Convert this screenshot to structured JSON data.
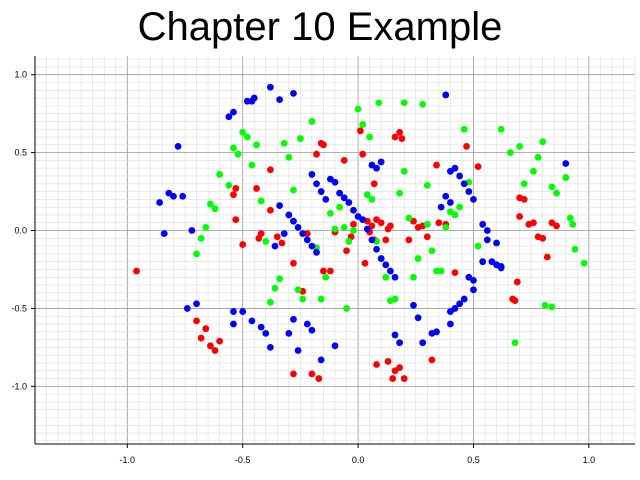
{
  "chart_data": {
    "type": "scatter",
    "title": "Chapter 10 Example",
    "xlabel": "",
    "ylabel": "",
    "xlim": [
      -1.4,
      1.2
    ],
    "ylim": [
      -1.37,
      1.12
    ],
    "grid": true,
    "x_ticks": [
      {
        "value": -1.0,
        "label": "-1.0"
      },
      {
        "value": -0.5,
        "label": "-0.5"
      },
      {
        "value": 0.0,
        "label": "0.0"
      },
      {
        "value": 0.5,
        "label": "0.5"
      },
      {
        "value": 1.0,
        "label": "1.0"
      }
    ],
    "y_ticks": [
      {
        "value": 1.0,
        "label": "1.0"
      },
      {
        "value": 0.5,
        "label": "0.5"
      },
      {
        "value": 0.0,
        "label": "0.0"
      },
      {
        "value": -0.5,
        "label": "-0.5"
      },
      {
        "value": -1.0,
        "label": "-1.0"
      }
    ],
    "series": [
      {
        "color": "#ff0000",
        "points": [
          [
            -0.96,
            -0.26
          ],
          [
            -0.53,
            0.27
          ],
          [
            -0.54,
            0.23
          ],
          [
            -0.53,
            0.07
          ],
          [
            -0.5,
            -0.09
          ],
          [
            -0.44,
            0.27
          ],
          [
            -0.43,
            -0.05
          ],
          [
            -0.42,
            -0.02
          ],
          [
            -0.38,
            0.39
          ],
          [
            -0.38,
            0.13
          ],
          [
            -0.35,
            -0.04
          ],
          [
            -0.33,
            -0.08
          ],
          [
            -0.28,
            -0.21
          ],
          [
            -0.24,
            -0.39
          ],
          [
            -0.22,
            -0.02
          ],
          [
            -0.18,
            0.49
          ],
          [
            -0.16,
            0.56
          ],
          [
            -0.15,
            0.55
          ],
          [
            -0.15,
            -0.26
          ],
          [
            -0.12,
            -0.26
          ],
          [
            -0.1,
            -0.01
          ],
          [
            -0.06,
            0.45
          ],
          [
            -0.05,
            -0.13
          ],
          [
            -0.03,
            -0.04
          ],
          [
            -0.02,
            0.04
          ],
          [
            0.01,
            0.64
          ],
          [
            0.02,
            0.49
          ],
          [
            0.03,
            -0.21
          ],
          [
            0.04,
            0.06
          ],
          [
            0.05,
            -0.01
          ],
          [
            0.06,
            0.03
          ],
          [
            0.07,
            -0.06
          ],
          [
            0.07,
            0.3
          ],
          [
            0.08,
            0.07
          ],
          [
            0.1,
            0.05
          ],
          [
            0.12,
            -0.06
          ],
          [
            0.13,
            0.01
          ],
          [
            0.14,
            0.03
          ],
          [
            0.16,
            0.6
          ],
          [
            0.18,
            0.63
          ],
          [
            0.19,
            0.59
          ],
          [
            0.22,
            -0.06
          ],
          [
            0.24,
            0.06
          ],
          [
            0.26,
            0.02
          ],
          [
            0.28,
            0.03
          ],
          [
            0.3,
            -0.04
          ],
          [
            0.34,
            0.42
          ],
          [
            0.35,
            0.05
          ],
          [
            0.38,
            0.04
          ],
          [
            0.42,
            -0.27
          ],
          [
            0.47,
            0.54
          ],
          [
            0.52,
            0.41
          ],
          [
            0.67,
            -0.44
          ],
          [
            0.68,
            -0.45
          ],
          [
            0.69,
            -0.33
          ],
          [
            0.7,
            0.21
          ],
          [
            0.7,
            0.09
          ],
          [
            0.72,
            0.2
          ],
          [
            0.74,
            0.04
          ],
          [
            0.76,
            0.05
          ],
          [
            0.78,
            -0.04
          ],
          [
            0.8,
            -0.05
          ],
          [
            0.82,
            -0.17
          ],
          [
            0.84,
            0.05
          ],
          [
            0.86,
            0.03
          ],
          [
            -0.7,
            -0.58
          ],
          [
            -0.68,
            -0.69
          ],
          [
            -0.66,
            -0.63
          ],
          [
            -0.64,
            -0.74
          ],
          [
            -0.62,
            -0.77
          ],
          [
            -0.6,
            -0.71
          ],
          [
            0.13,
            -0.84
          ],
          [
            0.16,
            -0.9
          ],
          [
            0.18,
            -0.88
          ],
          [
            0.2,
            -0.95
          ],
          [
            -0.28,
            -0.92
          ],
          [
            -0.2,
            -0.92
          ],
          [
            -0.17,
            -0.95
          ],
          [
            0.08,
            -0.86
          ],
          [
            0.15,
            -0.95
          ],
          [
            0.32,
            -0.83
          ]
        ]
      },
      {
        "color": "#00ff00",
        "points": [
          [
            -0.7,
            -0.15
          ],
          [
            -0.68,
            -0.05
          ],
          [
            -0.66,
            0.02
          ],
          [
            -0.64,
            0.17
          ],
          [
            -0.62,
            0.14
          ],
          [
            -0.6,
            0.36
          ],
          [
            -0.56,
            0.29
          ],
          [
            -0.54,
            0.53
          ],
          [
            -0.52,
            0.49
          ],
          [
            -0.5,
            0.63
          ],
          [
            -0.48,
            0.6
          ],
          [
            -0.46,
            0.42
          ],
          [
            -0.44,
            0.55
          ],
          [
            -0.42,
            0.19
          ],
          [
            -0.4,
            -0.07
          ],
          [
            -0.38,
            -0.46
          ],
          [
            -0.36,
            -0.37
          ],
          [
            -0.34,
            -0.31
          ],
          [
            -0.32,
            0.56
          ],
          [
            -0.3,
            0.47
          ],
          [
            -0.28,
            0.26
          ],
          [
            -0.26,
            -0.38
          ],
          [
            -0.24,
            -0.44
          ],
          [
            -0.2,
            0.7
          ],
          [
            -0.18,
            -0.11
          ],
          [
            -0.16,
            -0.44
          ],
          [
            -0.14,
            -0.3
          ],
          [
            -0.12,
            0.11
          ],
          [
            -0.1,
            0.01
          ],
          [
            -0.08,
            0.15
          ],
          [
            -0.06,
            0.02
          ],
          [
            -0.04,
            -0.07
          ],
          [
            -0.02,
            0.0
          ],
          [
            0.0,
            0.78
          ],
          [
            0.02,
            0.68
          ],
          [
            0.04,
            0.23
          ],
          [
            0.06,
            0.2
          ],
          [
            0.08,
            -0.07
          ],
          [
            0.1,
            -0.18
          ],
          [
            0.12,
            -0.3
          ],
          [
            0.14,
            -0.45
          ],
          [
            0.16,
            -0.44
          ],
          [
            0.18,
            0.24
          ],
          [
            0.2,
            0.82
          ],
          [
            0.22,
            0.08
          ],
          [
            0.24,
            -0.3
          ],
          [
            0.26,
            -0.18
          ],
          [
            0.28,
            0.81
          ],
          [
            0.3,
            0.04
          ],
          [
            0.32,
            -0.13
          ],
          [
            0.34,
            -0.26
          ],
          [
            0.36,
            -0.26
          ],
          [
            0.38,
            0.02
          ],
          [
            0.4,
            0.12
          ],
          [
            0.42,
            0.1
          ],
          [
            0.44,
            0.15
          ],
          [
            0.46,
            0.65
          ],
          [
            0.48,
            0.31
          ],
          [
            0.52,
            -0.1
          ],
          [
            0.62,
            0.65
          ],
          [
            0.66,
            0.5
          ],
          [
            0.7,
            0.54
          ],
          [
            0.72,
            0.3
          ],
          [
            0.76,
            0.38
          ],
          [
            0.78,
            0.47
          ],
          [
            0.8,
            0.57
          ],
          [
            0.84,
            0.28
          ],
          [
            0.86,
            0.24
          ],
          [
            0.9,
            0.34
          ],
          [
            0.92,
            0.08
          ],
          [
            0.93,
            0.04
          ],
          [
            0.94,
            -0.12
          ],
          [
            0.98,
            -0.21
          ],
          [
            0.84,
            -0.49
          ],
          [
            0.81,
            -0.48
          ],
          [
            0.68,
            -0.72
          ],
          [
            -0.05,
            -0.5
          ],
          [
            0.2,
            0.38
          ],
          [
            0.3,
            0.29
          ],
          [
            0.05,
            0.6
          ],
          [
            -0.25,
            0.59
          ],
          [
            0.09,
            0.82
          ]
        ]
      },
      {
        "color": "#0000ff",
        "points": [
          [
            -0.78,
            0.54
          ],
          [
            -0.82,
            0.24
          ],
          [
            -0.8,
            0.22
          ],
          [
            -0.76,
            0.22
          ],
          [
            -0.86,
            0.18
          ],
          [
            -0.84,
            -0.02
          ],
          [
            -0.72,
            0.0
          ],
          [
            -0.74,
            -0.5
          ],
          [
            -0.7,
            -0.47
          ],
          [
            -0.54,
            -0.52
          ],
          [
            -0.54,
            -0.6
          ],
          [
            -0.5,
            -0.52
          ],
          [
            -0.46,
            -0.58
          ],
          [
            -0.42,
            -0.62
          ],
          [
            -0.4,
            -0.66
          ],
          [
            -0.38,
            -0.75
          ],
          [
            -0.3,
            -0.66
          ],
          [
            -0.28,
            -0.57
          ],
          [
            -0.26,
            -0.77
          ],
          [
            -0.22,
            -0.6
          ],
          [
            -0.2,
            -0.64
          ],
          [
            -0.16,
            -0.83
          ],
          [
            -0.1,
            -0.74
          ],
          [
            -0.56,
            0.73
          ],
          [
            -0.54,
            0.76
          ],
          [
            -0.48,
            0.83
          ],
          [
            -0.46,
            0.83
          ],
          [
            -0.45,
            0.85
          ],
          [
            -0.38,
            0.92
          ],
          [
            -0.34,
            0.84
          ],
          [
            -0.28,
            0.88
          ],
          [
            -0.2,
            0.36
          ],
          [
            -0.18,
            0.3
          ],
          [
            -0.16,
            0.25
          ],
          [
            -0.14,
            0.2
          ],
          [
            -0.12,
            0.33
          ],
          [
            -0.1,
            0.31
          ],
          [
            -0.08,
            0.24
          ],
          [
            -0.06,
            0.21
          ],
          [
            -0.04,
            0.18
          ],
          [
            -0.02,
            0.13
          ],
          [
            0.0,
            0.09
          ],
          [
            0.02,
            0.07
          ],
          [
            0.04,
            0.01
          ],
          [
            0.06,
            -0.06
          ],
          [
            0.08,
            -0.12
          ],
          [
            0.1,
            -0.18
          ],
          [
            0.12,
            -0.22
          ],
          [
            0.14,
            -0.26
          ],
          [
            0.16,
            -0.3
          ],
          [
            -0.3,
            0.1
          ],
          [
            -0.28,
            0.06
          ],
          [
            -0.26,
            0.02
          ],
          [
            -0.24,
            -0.02
          ],
          [
            -0.22,
            -0.06
          ],
          [
            -0.2,
            -0.1
          ],
          [
            -0.18,
            -0.14
          ],
          [
            -0.32,
            -0.02
          ],
          [
            -0.36,
            -0.1
          ],
          [
            -0.34,
            0.16
          ],
          [
            0.06,
            0.42
          ],
          [
            0.08,
            0.4
          ],
          [
            0.1,
            0.44
          ],
          [
            0.38,
            0.87
          ],
          [
            0.4,
            0.38
          ],
          [
            0.42,
            0.4
          ],
          [
            0.44,
            0.35
          ],
          [
            0.46,
            0.3
          ],
          [
            0.48,
            0.25
          ],
          [
            0.5,
            0.2
          ],
          [
            0.38,
            0.22
          ],
          [
            0.4,
            0.18
          ],
          [
            0.36,
            0.15
          ],
          [
            0.54,
            0.04
          ],
          [
            0.56,
            0.0
          ],
          [
            0.56,
            -0.06
          ],
          [
            0.6,
            -0.08
          ],
          [
            0.62,
            -0.24
          ],
          [
            0.6,
            -0.22
          ],
          [
            0.54,
            -0.2
          ],
          [
            0.48,
            -0.3
          ],
          [
            0.5,
            -0.32
          ],
          [
            0.5,
            -0.38
          ],
          [
            0.46,
            -0.44
          ],
          [
            0.42,
            -0.5
          ],
          [
            0.4,
            -0.52
          ],
          [
            0.4,
            -0.6
          ],
          [
            0.24,
            -0.48
          ],
          [
            0.18,
            -0.72
          ],
          [
            0.26,
            -0.56
          ],
          [
            0.28,
            -0.72
          ],
          [
            0.34,
            -0.65
          ],
          [
            0.44,
            -0.47
          ],
          [
            0.9,
            0.43
          ],
          [
            0.16,
            -0.67
          ],
          [
            0.32,
            -0.66
          ],
          [
            0.62,
            -0.23
          ],
          [
            0.58,
            -0.2
          ]
        ]
      }
    ]
  }
}
